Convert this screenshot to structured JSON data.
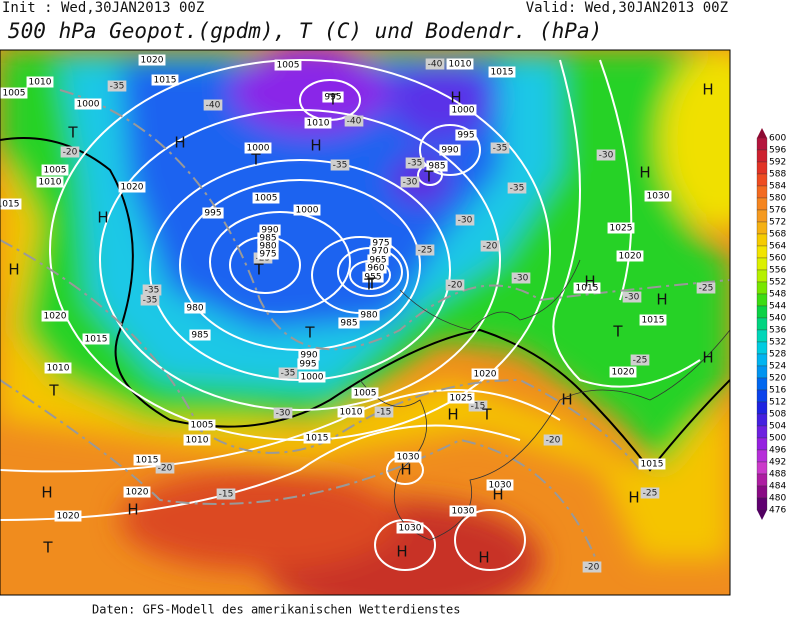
{
  "header": {
    "init": "Init : Wed,30JAN2013 00Z",
    "valid": "Valid: Wed,30JAN2013 00Z",
    "title": "500 hPa Geopot.(gpdm), T (C) und Bodendr. (hPa)"
  },
  "legend": {
    "labels": [
      "600",
      "596",
      "592",
      "588",
      "584",
      "580",
      "576",
      "572",
      "568",
      "564",
      "560",
      "556",
      "552",
      "548",
      "544",
      "540",
      "536",
      "532",
      "528",
      "524",
      "520",
      "516",
      "512",
      "508",
      "504",
      "500",
      "496",
      "492",
      "488",
      "484",
      "480",
      "476"
    ]
  },
  "map": {
    "pressure_labels": [
      "1020",
      "1015",
      "1010",
      "1005",
      "1000",
      "1005",
      "995",
      "1010",
      "1000",
      "1005",
      "1000",
      "995",
      "990",
      "985",
      "980",
      "975",
      "980",
      "985",
      "990",
      "995",
      "1000",
      "1010",
      "1015",
      "1000",
      "995",
      "990",
      "985",
      "1005",
      "1010",
      "1020",
      "1015",
      "975",
      "970",
      "965",
      "960",
      "955",
      "980",
      "985",
      "1030",
      "1025",
      "1020",
      "1015",
      "1015",
      "1020",
      "1020",
      "1015",
      "1010",
      "1005",
      "1010",
      "1015",
      "1005",
      "1010",
      "1015",
      "1020",
      "1020",
      "1020",
      "1025",
      "1030",
      "1030",
      "1030",
      "1030",
      "1015"
    ],
    "temperature_labels": [
      "-35",
      "-40",
      "-40",
      "-40",
      "-35",
      "-20",
      "-35",
      "-35",
      "-30",
      "-35",
      "-30",
      "-30",
      "-25",
      "-20",
      "-30",
      "-20",
      "-30",
      "-25",
      "-35",
      "-35",
      "-25",
      "-35",
      "-30",
      "-15",
      "-15",
      "-20",
      "-15",
      "-20",
      "-25",
      "-20",
      "-25"
    ],
    "center_letters": [
      "H",
      "H",
      "H",
      "H",
      "H",
      "H",
      "H",
      "H",
      "H",
      "H",
      "H",
      "H",
      "H",
      "H",
      "H",
      "H",
      "H",
      "H",
      "H",
      "T",
      "T",
      "T",
      "T",
      "T",
      "T",
      "T",
      "T",
      "T",
      "T",
      "T",
      "T"
    ]
  },
  "footer": "Daten: GFS-Modell des amerikanischen Wetterdienstes"
}
